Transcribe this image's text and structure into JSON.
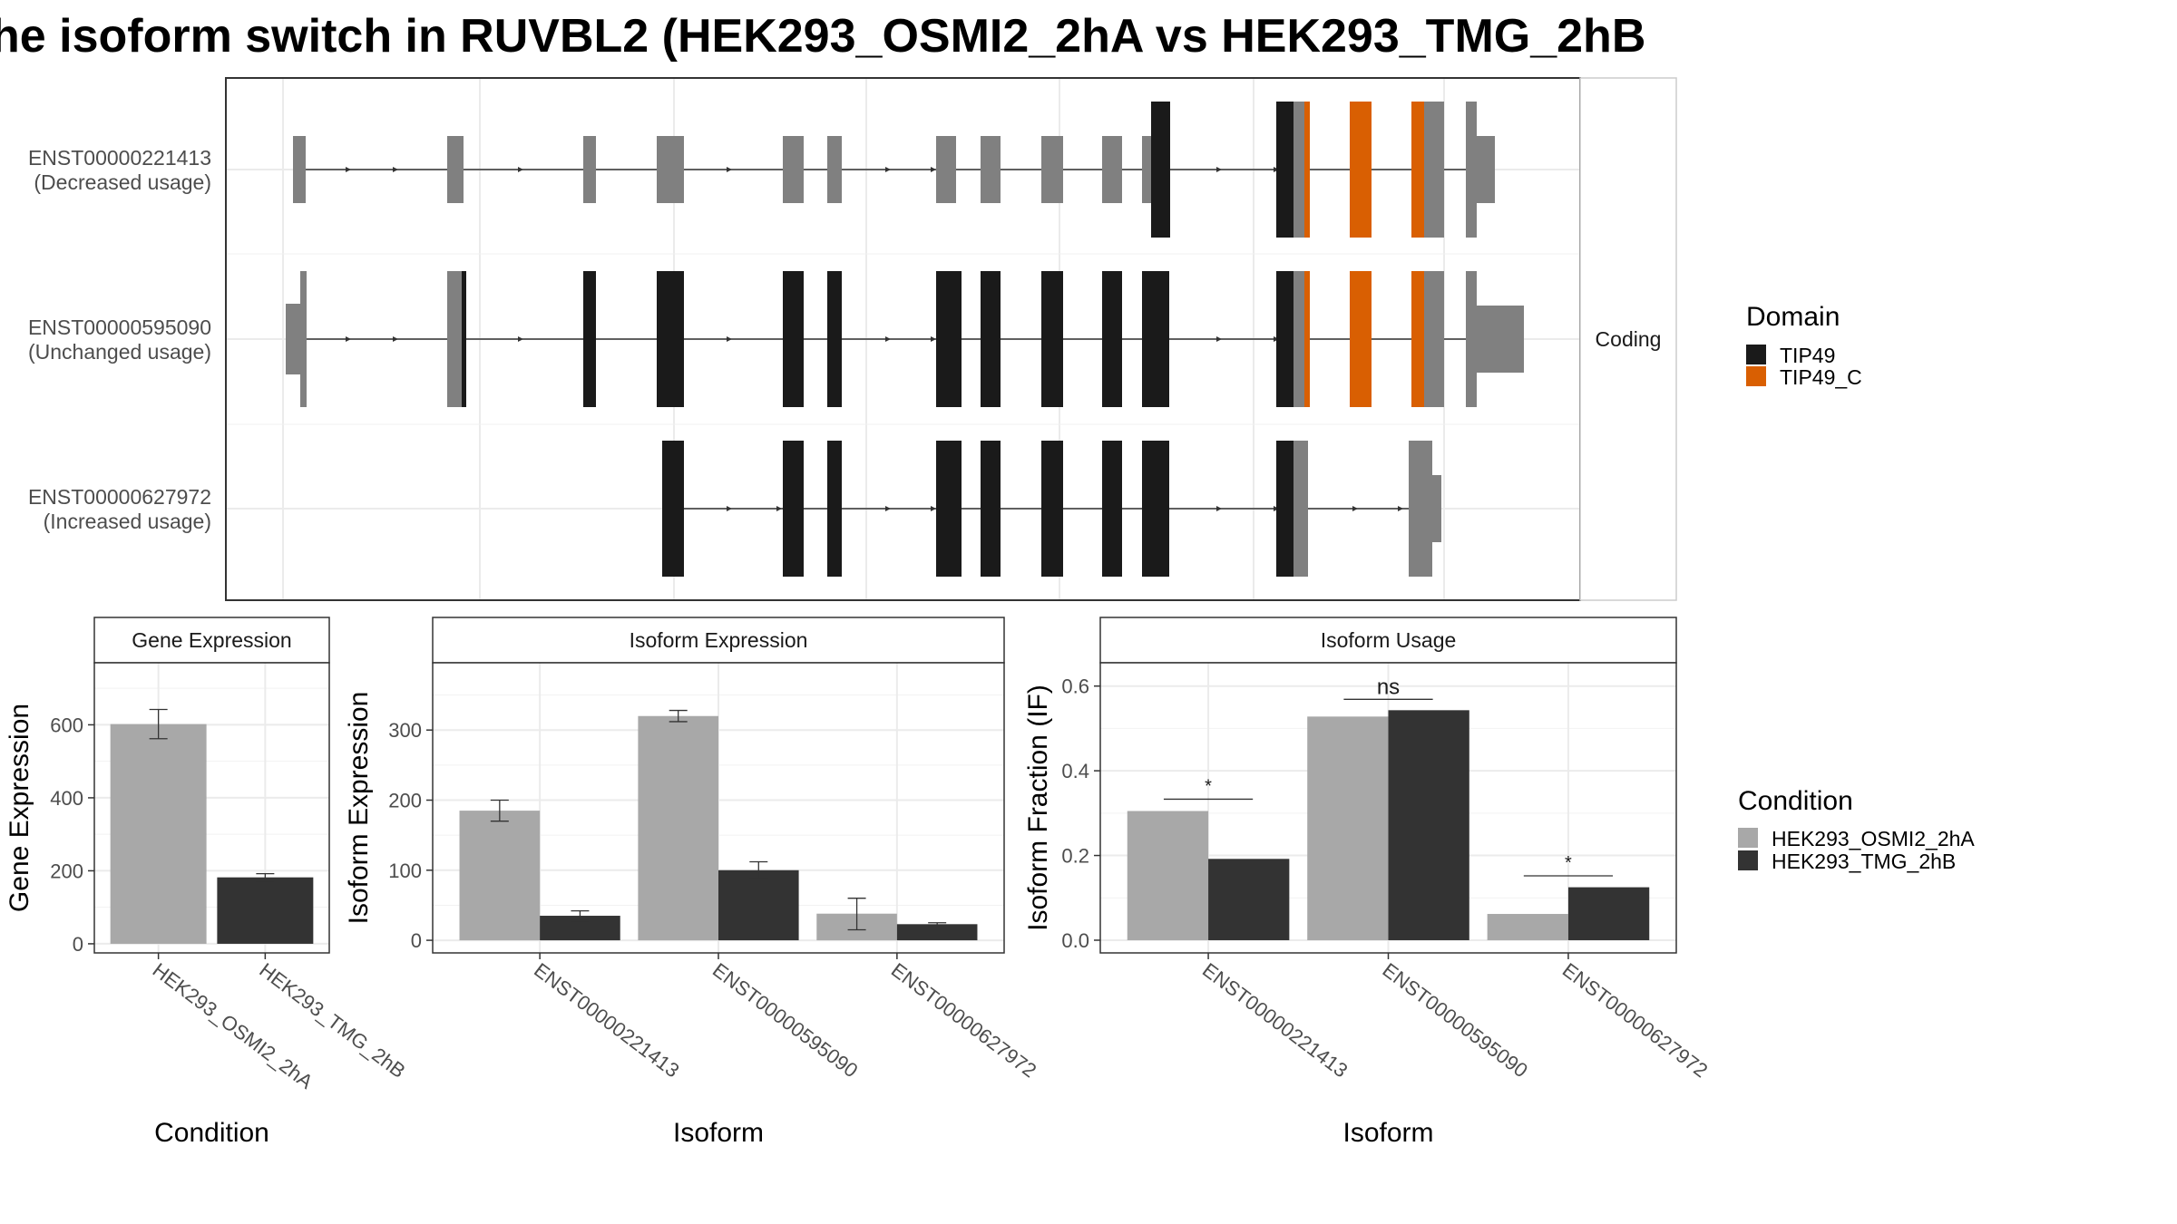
{
  "title": "he isoform switch in RUVBL2 (HEK293_OSMI2_2hA vs HEK293_TMG_2hB",
  "colors": {
    "cond_a": "#a8a8a8",
    "cond_b": "#333333",
    "domain_tip49": "#1a1a1a",
    "domain_tip49_c": "#d95f02",
    "noncoding": "#808080",
    "intron": "#333333",
    "grid": "#ebebeb"
  },
  "isoform_structure": {
    "facet_label": "Coding",
    "rows": [
      {
        "id": "ENST00000221413",
        "label": "(Decreased usage)"
      },
      {
        "id": "ENST00000595090",
        "label": "(Unchanged usage)"
      },
      {
        "id": "ENST00000627972",
        "label": "(Increased usage)"
      }
    ],
    "domain_legend": {
      "title": "Domain",
      "items": [
        {
          "name": "TIP49",
          "color": "#1a1a1a"
        },
        {
          "name": "TIP49_C",
          "color": "#d95f02"
        }
      ]
    }
  },
  "condition_legend": {
    "title": "Condition",
    "items": [
      {
        "name": "HEK293_OSMI2_2hA",
        "color": "#a8a8a8"
      },
      {
        "name": "HEK293_TMG_2hB",
        "color": "#333333"
      }
    ]
  },
  "chart_data": [
    {
      "type": "bar",
      "title": "Gene Expression",
      "xlabel": "Condition",
      "ylabel": "Gene Expression",
      "categories": [
        "HEK293_OSMI2_2hA",
        "HEK293_TMG_2hB"
      ],
      "values": [
        602,
        182
      ],
      "error_low": [
        562,
        172
      ],
      "error_high": [
        642,
        192
      ],
      "ylim": [
        -25,
        770
      ],
      "yticks": [
        0,
        200,
        400,
        600
      ],
      "grid": true
    },
    {
      "type": "bar",
      "title": "Isoform Expression",
      "xlabel": "Isoform",
      "ylabel": "Isoform Expression",
      "categories": [
        "ENST00000221413",
        "ENST00000595090",
        "ENST00000627972"
      ],
      "series": [
        {
          "name": "HEK293_OSMI2_2hA",
          "values": [
            185,
            320,
            38
          ],
          "error_low": [
            170,
            312,
            15
          ],
          "error_high": [
            200,
            328,
            60
          ]
        },
        {
          "name": "HEK293_TMG_2hB",
          "values": [
            35,
            100,
            23
          ],
          "error_low": [
            28,
            88,
            21
          ],
          "error_high": [
            42,
            112,
            25
          ]
        }
      ],
      "ylim": [
        -18,
        396
      ],
      "yticks": [
        0,
        100,
        200,
        300
      ],
      "grid": true
    },
    {
      "type": "bar",
      "title": "Isoform Usage",
      "xlabel": "Isoform",
      "ylabel": "Isoform Fraction (IF)",
      "categories": [
        "ENST00000221413",
        "ENST00000595090",
        "ENST00000627972"
      ],
      "series": [
        {
          "name": "HEK293_OSMI2_2hA",
          "values": [
            0.305,
            0.528,
            0.062
          ]
        },
        {
          "name": "HEK293_TMG_2hB",
          "values": [
            0.192,
            0.543,
            0.125
          ]
        }
      ],
      "significance": [
        "*",
        "ns",
        "*"
      ],
      "ylim": [
        -0.03,
        0.655
      ],
      "yticks": [
        "0.0",
        "0.2",
        "0.4",
        "0.6"
      ],
      "grid": true
    }
  ]
}
